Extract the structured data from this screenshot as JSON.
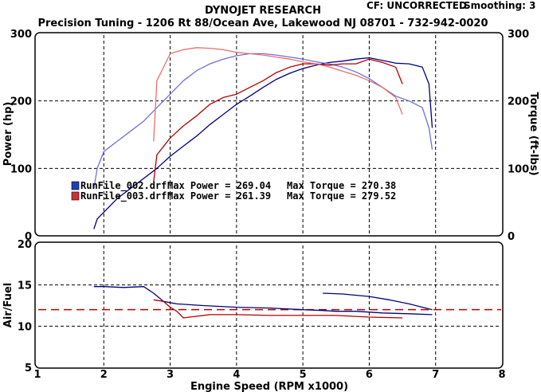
{
  "header": {
    "brand": "DYNOJET RESEARCH",
    "shop": "Precision Tuning - 1206 Rt 88/Ocean Ave, Lakewood NJ 08701 - 732-942-0020",
    "correction": "CF: UNCORRECTED",
    "smoothing": "Smoothing: 3"
  },
  "legend": [
    {
      "file": "RunFile_002.drf",
      "power_label": "Max Power = 269.04",
      "torque_label": "Max Torque = 270.38"
    },
    {
      "file": "RunFile_003.drf",
      "power_label": "Max Power = 261.39",
      "torque_label": "Max Torque = 279.52"
    }
  ],
  "chart_data": [
    {
      "type": "line",
      "xlabel": "Engine Speed (RPM x1000)",
      "ylabel": "Power (hp)",
      "ylabel_right": "Torque (ft-lbs)",
      "xlim": [
        1,
        8
      ],
      "ylim": [
        0,
        300
      ],
      "ylim_right": [
        0,
        300
      ],
      "x_ticks": [
        "1",
        "2",
        "3",
        "4",
        "5",
        "6",
        "7",
        "8"
      ],
      "y_ticks": [
        "0",
        "100",
        "200",
        "300"
      ],
      "y_ticks_right": [
        "0",
        "100",
        "200",
        "300"
      ],
      "grid": true,
      "series": [
        {
          "name": "RunFile_002.drf",
          "measure": "power",
          "color": "#00007a",
          "x": [
            1.85,
            1.9,
            2.0,
            2.2,
            2.4,
            2.6,
            2.8,
            3.0,
            3.2,
            3.4,
            3.6,
            3.8,
            4.0,
            4.2,
            4.4,
            4.6,
            4.8,
            5.0,
            5.2,
            5.4,
            5.6,
            5.8,
            6.0,
            6.2,
            6.4,
            6.6,
            6.8,
            6.9,
            6.95
          ],
          "y": [
            10,
            25,
            35,
            55,
            70,
            85,
            100,
            118,
            133,
            148,
            165,
            180,
            195,
            207,
            220,
            232,
            241,
            248,
            253,
            257,
            259,
            262,
            264,
            260,
            256,
            255,
            250,
            225,
            160
          ]
        },
        {
          "name": "RunFile_002.drf",
          "measure": "torque",
          "color": "#6f6fd8",
          "x": [
            1.85,
            1.9,
            2.0,
            2.2,
            2.4,
            2.6,
            2.8,
            3.0,
            3.2,
            3.4,
            3.6,
            3.8,
            4.0,
            4.2,
            4.4,
            4.6,
            4.8,
            5.0,
            5.2,
            5.4,
            5.6,
            5.8,
            6.0,
            6.2,
            6.4,
            6.6,
            6.8,
            6.9,
            6.95
          ],
          "y": [
            70,
            100,
            125,
            140,
            155,
            170,
            190,
            210,
            230,
            245,
            255,
            262,
            267,
            270,
            270,
            268,
            265,
            262,
            258,
            255,
            250,
            243,
            233,
            220,
            207,
            200,
            190,
            160,
            128
          ]
        },
        {
          "name": "RunFile_003.drf",
          "measure": "power",
          "color": "#b00000",
          "x": [
            2.75,
            2.8,
            3.0,
            3.2,
            3.4,
            3.6,
            3.8,
            4.0,
            4.2,
            4.4,
            4.6,
            4.8,
            5.0,
            5.2,
            5.4,
            5.6,
            5.8,
            6.0,
            6.2,
            6.4,
            6.5
          ],
          "y": [
            80,
            120,
            145,
            163,
            178,
            195,
            205,
            210,
            220,
            230,
            242,
            250,
            255,
            255,
            253,
            255,
            255,
            262,
            257,
            250,
            225
          ]
        },
        {
          "name": "RunFile_003.drf",
          "measure": "torque",
          "color": "#e87070",
          "x": [
            2.75,
            2.8,
            3.0,
            3.2,
            3.4,
            3.6,
            3.8,
            4.0,
            4.2,
            4.4,
            4.6,
            4.8,
            5.0,
            5.2,
            5.4,
            5.6,
            5.8,
            6.0,
            6.2,
            6.4,
            6.5
          ],
          "y": [
            140,
            230,
            270,
            276,
            279,
            278,
            276,
            272,
            270,
            268,
            265,
            262,
            258,
            255,
            250,
            244,
            238,
            230,
            220,
            205,
            180
          ]
        }
      ]
    },
    {
      "type": "line",
      "xlabel": "Engine Speed (RPM x1000)",
      "ylabel": "Air/Fuel",
      "xlim": [
        1,
        8
      ],
      "ylim": [
        5,
        20
      ],
      "x_ticks": [
        "1",
        "2",
        "3",
        "4",
        "5",
        "6",
        "7",
        "8"
      ],
      "y_ticks": [
        "5",
        "10",
        "15",
        "20"
      ],
      "grid": true,
      "reference_line": {
        "y": 12,
        "color": "#c00000",
        "style": "dashed"
      },
      "series": [
        {
          "name": "RunFile_002.drf",
          "color": "#00007a",
          "x": [
            1.85,
            2.0,
            2.3,
            2.6,
            2.75,
            2.9,
            3.1,
            3.5,
            4.0,
            4.5,
            5.0,
            5.3,
            5.5,
            5.8,
            6.2,
            6.6,
            6.95
          ],
          "y": [
            14.8,
            14.8,
            14.7,
            14.8,
            14.0,
            13.0,
            12.7,
            12.5,
            12.3,
            12.2,
            12.0,
            11.9,
            11.8,
            11.8,
            11.6,
            11.5,
            11.4
          ]
        },
        {
          "name": "RunFile_002.drf (second segment)",
          "color": "#00007a",
          "x": [
            5.3,
            5.6,
            6.0,
            6.3,
            6.6,
            6.95
          ],
          "y": [
            14.0,
            13.9,
            13.6,
            13.2,
            12.7,
            12.0
          ]
        },
        {
          "name": "RunFile_003.drf",
          "color": "#b00000",
          "x": [
            2.75,
            2.9,
            3.0,
            3.1,
            3.2,
            3.4,
            3.6,
            4.0,
            4.5,
            5.0,
            5.5,
            6.0,
            6.5
          ],
          "y": [
            13.2,
            13.0,
            12.3,
            11.8,
            11.0,
            11.2,
            11.4,
            11.4,
            11.3,
            11.3,
            11.3,
            11.1,
            11.0
          ]
        }
      ]
    }
  ]
}
